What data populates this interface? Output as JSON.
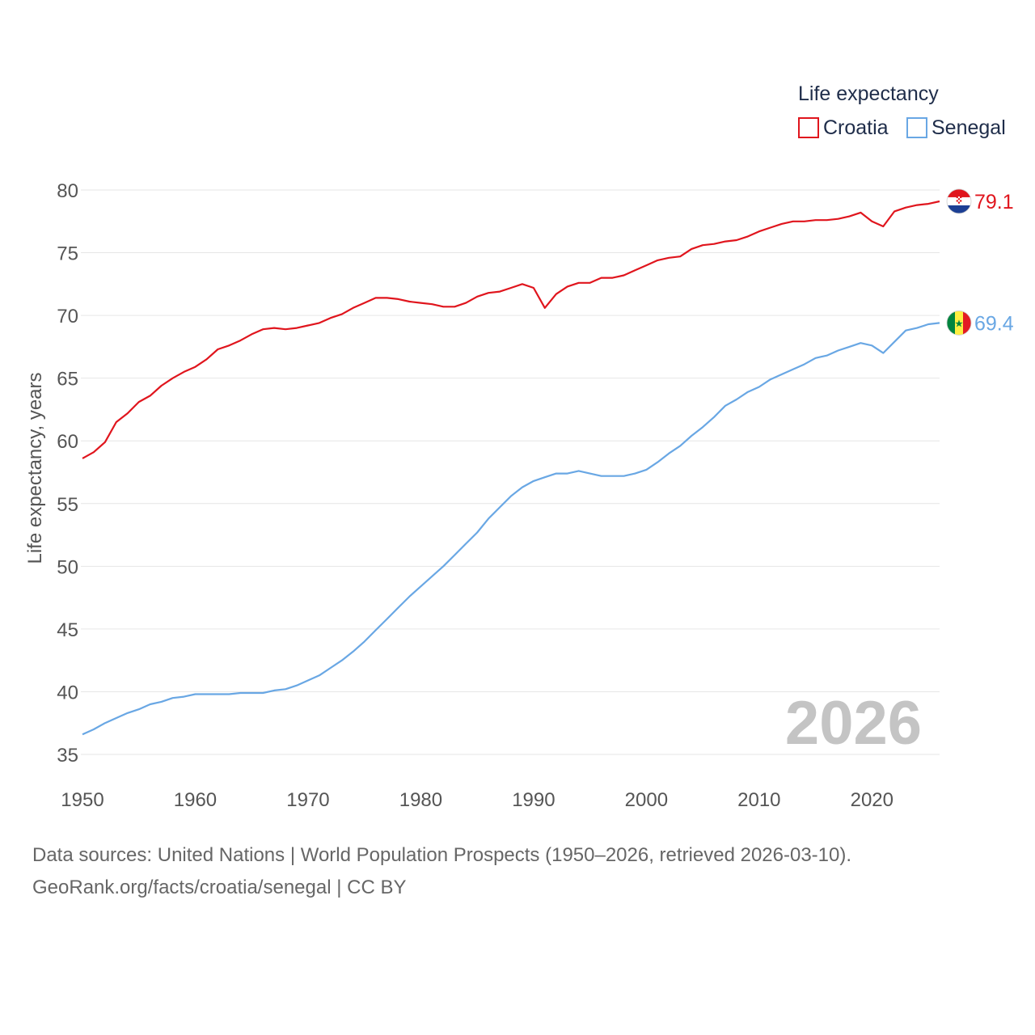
{
  "chart_data": {
    "type": "line",
    "title": "Life expectancy",
    "ylabel": "Life expectancy, years",
    "xlabel": "",
    "ylim": [
      35,
      80
    ],
    "xlim": [
      1950,
      2026
    ],
    "yticks": [
      35,
      40,
      45,
      50,
      55,
      60,
      65,
      70,
      75,
      80
    ],
    "xticks": [
      1950,
      1960,
      1970,
      1980,
      1990,
      2000,
      2010,
      2020
    ],
    "grid": true,
    "legend_position": "top-right",
    "year_stamp": "2026",
    "series": [
      {
        "name": "Croatia",
        "color": "#e0151d",
        "end_label": "79.1",
        "flag": "croatia-flag",
        "points": [
          [
            1950,
            58.6
          ],
          [
            1951,
            59.1
          ],
          [
            1952,
            59.9
          ],
          [
            1953,
            61.5
          ],
          [
            1954,
            62.2
          ],
          [
            1955,
            63.1
          ],
          [
            1956,
            63.6
          ],
          [
            1957,
            64.4
          ],
          [
            1958,
            65.0
          ],
          [
            1959,
            65.5
          ],
          [
            1960,
            65.9
          ],
          [
            1961,
            66.5
          ],
          [
            1962,
            67.3
          ],
          [
            1963,
            67.6
          ],
          [
            1964,
            68.0
          ],
          [
            1965,
            68.5
          ],
          [
            1966,
            68.9
          ],
          [
            1967,
            69.0
          ],
          [
            1968,
            68.9
          ],
          [
            1969,
            69.0
          ],
          [
            1970,
            69.2
          ],
          [
            1971,
            69.4
          ],
          [
            1972,
            69.8
          ],
          [
            1973,
            70.1
          ],
          [
            1974,
            70.6
          ],
          [
            1975,
            71.0
          ],
          [
            1976,
            71.4
          ],
          [
            1977,
            71.4
          ],
          [
            1978,
            71.3
          ],
          [
            1979,
            71.1
          ],
          [
            1980,
            71.0
          ],
          [
            1981,
            70.9
          ],
          [
            1982,
            70.7
          ],
          [
            1983,
            70.7
          ],
          [
            1984,
            71.0
          ],
          [
            1985,
            71.5
          ],
          [
            1986,
            71.8
          ],
          [
            1987,
            71.9
          ],
          [
            1988,
            72.2
          ],
          [
            1989,
            72.5
          ],
          [
            1990,
            72.2
          ],
          [
            1991,
            70.6
          ],
          [
            1992,
            71.7
          ],
          [
            1993,
            72.3
          ],
          [
            1994,
            72.6
          ],
          [
            1995,
            72.6
          ],
          [
            1996,
            73.0
          ],
          [
            1997,
            73.0
          ],
          [
            1998,
            73.2
          ],
          [
            1999,
            73.6
          ],
          [
            2000,
            74.0
          ],
          [
            2001,
            74.4
          ],
          [
            2002,
            74.6
          ],
          [
            2003,
            74.7
          ],
          [
            2004,
            75.3
          ],
          [
            2005,
            75.6
          ],
          [
            2006,
            75.7
          ],
          [
            2007,
            75.9
          ],
          [
            2008,
            76.0
          ],
          [
            2009,
            76.3
          ],
          [
            2010,
            76.7
          ],
          [
            2011,
            77.0
          ],
          [
            2012,
            77.3
          ],
          [
            2013,
            77.5
          ],
          [
            2014,
            77.5
          ],
          [
            2015,
            77.6
          ],
          [
            2016,
            77.6
          ],
          [
            2017,
            77.7
          ],
          [
            2018,
            77.9
          ],
          [
            2019,
            78.2
          ],
          [
            2020,
            77.5
          ],
          [
            2021,
            77.1
          ],
          [
            2022,
            78.3
          ],
          [
            2023,
            78.6
          ],
          [
            2024,
            78.8
          ],
          [
            2025,
            78.9
          ],
          [
            2026,
            79.1
          ]
        ]
      },
      {
        "name": "Senegal",
        "color": "#69a7e4",
        "end_label": "69.4",
        "flag": "senegal-flag",
        "points": [
          [
            1950,
            36.6
          ],
          [
            1951,
            37.0
          ],
          [
            1952,
            37.5
          ],
          [
            1953,
            37.9
          ],
          [
            1954,
            38.3
          ],
          [
            1955,
            38.6
          ],
          [
            1956,
            39.0
          ],
          [
            1957,
            39.2
          ],
          [
            1958,
            39.5
          ],
          [
            1959,
            39.6
          ],
          [
            1960,
            39.8
          ],
          [
            1961,
            39.8
          ],
          [
            1962,
            39.8
          ],
          [
            1963,
            39.8
          ],
          [
            1964,
            39.9
          ],
          [
            1965,
            39.9
          ],
          [
            1966,
            39.9
          ],
          [
            1967,
            40.1
          ],
          [
            1968,
            40.2
          ],
          [
            1969,
            40.5
          ],
          [
            1970,
            40.9
          ],
          [
            1971,
            41.3
          ],
          [
            1972,
            41.9
          ],
          [
            1973,
            42.5
          ],
          [
            1974,
            43.2
          ],
          [
            1975,
            44.0
          ],
          [
            1976,
            44.9
          ],
          [
            1977,
            45.8
          ],
          [
            1978,
            46.7
          ],
          [
            1979,
            47.6
          ],
          [
            1980,
            48.4
          ],
          [
            1981,
            49.2
          ],
          [
            1982,
            50.0
          ],
          [
            1983,
            50.9
          ],
          [
            1984,
            51.8
          ],
          [
            1985,
            52.7
          ],
          [
            1986,
            53.8
          ],
          [
            1987,
            54.7
          ],
          [
            1988,
            55.6
          ],
          [
            1989,
            56.3
          ],
          [
            1990,
            56.8
          ],
          [
            1991,
            57.1
          ],
          [
            1992,
            57.4
          ],
          [
            1993,
            57.4
          ],
          [
            1994,
            57.6
          ],
          [
            1995,
            57.4
          ],
          [
            1996,
            57.2
          ],
          [
            1997,
            57.2
          ],
          [
            1998,
            57.2
          ],
          [
            1999,
            57.4
          ],
          [
            2000,
            57.7
          ],
          [
            2001,
            58.3
          ],
          [
            2002,
            59.0
          ],
          [
            2003,
            59.6
          ],
          [
            2004,
            60.4
          ],
          [
            2005,
            61.1
          ],
          [
            2006,
            61.9
          ],
          [
            2007,
            62.8
          ],
          [
            2008,
            63.3
          ],
          [
            2009,
            63.9
          ],
          [
            2010,
            64.3
          ],
          [
            2011,
            64.9
          ],
          [
            2012,
            65.3
          ],
          [
            2013,
            65.7
          ],
          [
            2014,
            66.1
          ],
          [
            2015,
            66.6
          ],
          [
            2016,
            66.8
          ],
          [
            2017,
            67.2
          ],
          [
            2018,
            67.5
          ],
          [
            2019,
            67.8
          ],
          [
            2020,
            67.6
          ],
          [
            2021,
            67.0
          ],
          [
            2022,
            67.9
          ],
          [
            2023,
            68.8
          ],
          [
            2024,
            69.0
          ],
          [
            2025,
            69.3
          ],
          [
            2026,
            69.4
          ]
        ]
      }
    ]
  },
  "footer": {
    "source_line": "Data sources: United Nations | World Population Prospects (1950–2026, retrieved 2026-03-10).",
    "attribution_line": "GeoRank.org/facts/croatia/senegal | CC BY"
  }
}
